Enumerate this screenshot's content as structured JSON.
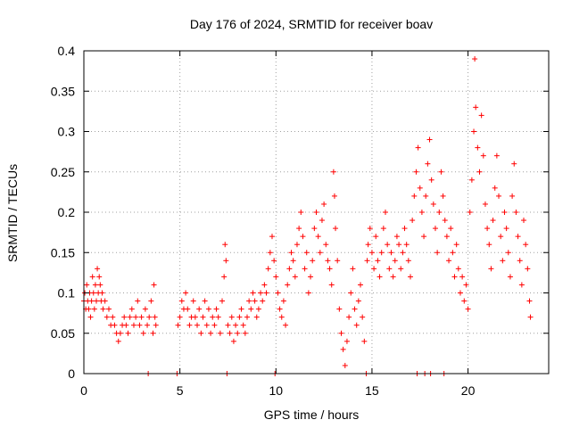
{
  "chart_data": {
    "type": "scatter",
    "title": "Day 176 of 2024, SRMTID for receiver boav",
    "xlabel": "GPS time / hours",
    "ylabel": "SRMTID / TECUs",
    "xlim": [
      0,
      24.2
    ],
    "ylim": [
      0,
      0.4
    ],
    "x_ticks": [
      0,
      5,
      10,
      15,
      20
    ],
    "x_tick_labels": [
      "0",
      "5",
      "10",
      "15",
      "20"
    ],
    "y_ticks": [
      0,
      0.05,
      0.1,
      0.15,
      0.2,
      0.25,
      0.3,
      0.35,
      0.4
    ],
    "y_tick_labels": [
      "0",
      "0.05",
      "0.1",
      "0.15",
      "0.2",
      "0.25",
      "0.3",
      "0.35",
      "0.4"
    ],
    "grid": true,
    "marker": "plus",
    "color": "#ff0000",
    "series": [
      {
        "name": "SRMTID",
        "points": [
          [
            0.0,
            0.09
          ],
          [
            0.05,
            0.1
          ],
          [
            0.1,
            0.08
          ],
          [
            0.15,
            0.11
          ],
          [
            0.2,
            0.09
          ],
          [
            0.25,
            0.08
          ],
          [
            0.3,
            0.1
          ],
          [
            0.35,
            0.07
          ],
          [
            0.4,
            0.09
          ],
          [
            0.45,
            0.12
          ],
          [
            0.5,
            0.1
          ],
          [
            0.55,
            0.08
          ],
          [
            0.6,
            0.11
          ],
          [
            0.65,
            0.09
          ],
          [
            0.7,
            0.13
          ],
          [
            0.75,
            0.1
          ],
          [
            0.8,
            0.12
          ],
          [
            0.85,
            0.11
          ],
          [
            0.9,
            0.09
          ],
          [
            0.95,
            0.1
          ],
          [
            1.0,
            0.08
          ],
          [
            1.1,
            0.09
          ],
          [
            1.2,
            0.07
          ],
          [
            1.3,
            0.08
          ],
          [
            1.4,
            0.06
          ],
          [
            1.5,
            0.07
          ],
          [
            1.6,
            0.06
          ],
          [
            1.7,
            0.05
          ],
          [
            1.8,
            0.04
          ],
          [
            1.9,
            0.05
          ],
          [
            2.0,
            0.06
          ],
          [
            2.1,
            0.07
          ],
          [
            2.2,
            0.06
          ],
          [
            2.3,
            0.05
          ],
          [
            2.4,
            0.07
          ],
          [
            2.5,
            0.08
          ],
          [
            2.6,
            0.06
          ],
          [
            2.7,
            0.07
          ],
          [
            2.8,
            0.09
          ],
          [
            2.9,
            0.06
          ],
          [
            3.0,
            0.07
          ],
          [
            3.1,
            0.05
          ],
          [
            3.2,
            0.08
          ],
          [
            3.3,
            0.06
          ],
          [
            3.4,
            0.07
          ],
          [
            3.5,
            0.09
          ],
          [
            3.6,
            0.05
          ],
          [
            3.65,
            0.11
          ],
          [
            3.7,
            0.07
          ],
          [
            3.75,
            0.06
          ],
          [
            3.35,
            0.0
          ],
          [
            4.85,
            0.0
          ],
          [
            4.9,
            0.06
          ],
          [
            5.0,
            0.07
          ],
          [
            5.1,
            0.09
          ],
          [
            5.2,
            0.08
          ],
          [
            5.3,
            0.1
          ],
          [
            5.4,
            0.08
          ],
          [
            5.5,
            0.06
          ],
          [
            5.6,
            0.07
          ],
          [
            5.7,
            0.09
          ],
          [
            5.8,
            0.07
          ],
          [
            5.9,
            0.06
          ],
          [
            6.0,
            0.08
          ],
          [
            6.1,
            0.05
          ],
          [
            6.2,
            0.07
          ],
          [
            6.3,
            0.09
          ],
          [
            6.4,
            0.06
          ],
          [
            6.5,
            0.08
          ],
          [
            6.6,
            0.05
          ],
          [
            6.7,
            0.07
          ],
          [
            6.8,
            0.06
          ],
          [
            6.9,
            0.08
          ],
          [
            7.0,
            0.07
          ],
          [
            7.1,
            0.05
          ],
          [
            7.2,
            0.09
          ],
          [
            7.3,
            0.12
          ],
          [
            7.35,
            0.16
          ],
          [
            7.4,
            0.14
          ],
          [
            7.5,
            0.06
          ],
          [
            7.45,
            0.0
          ],
          [
            7.6,
            0.05
          ],
          [
            7.7,
            0.07
          ],
          [
            7.8,
            0.04
          ],
          [
            7.9,
            0.06
          ],
          [
            8.0,
            0.05
          ],
          [
            8.1,
            0.07
          ],
          [
            8.2,
            0.08
          ],
          [
            8.3,
            0.06
          ],
          [
            8.4,
            0.05
          ],
          [
            8.5,
            0.07
          ],
          [
            8.6,
            0.09
          ],
          [
            8.7,
            0.08
          ],
          [
            8.8,
            0.1
          ],
          [
            8.9,
            0.09
          ],
          [
            9.0,
            0.07
          ],
          [
            9.1,
            0.08
          ],
          [
            9.2,
            0.1
          ],
          [
            9.3,
            0.09
          ],
          [
            9.4,
            0.11
          ],
          [
            9.5,
            0.1
          ],
          [
            9.6,
            0.13
          ],
          [
            9.7,
            0.15
          ],
          [
            9.8,
            0.17
          ],
          [
            9.9,
            0.14
          ],
          [
            9.95,
            0.0
          ],
          [
            10.0,
            0.12
          ],
          [
            10.1,
            0.1
          ],
          [
            10.2,
            0.08
          ],
          [
            10.3,
            0.07
          ],
          [
            10.4,
            0.09
          ],
          [
            10.5,
            0.06
          ],
          [
            10.6,
            0.11
          ],
          [
            10.7,
            0.13
          ],
          [
            10.8,
            0.15
          ],
          [
            10.9,
            0.14
          ],
          [
            11.0,
            0.12
          ],
          [
            11.1,
            0.16
          ],
          [
            11.2,
            0.18
          ],
          [
            11.3,
            0.2
          ],
          [
            11.4,
            0.17
          ],
          [
            11.5,
            0.13
          ],
          [
            11.6,
            0.15
          ],
          [
            11.7,
            0.1
          ],
          [
            11.8,
            0.12
          ],
          [
            11.9,
            0.14
          ],
          [
            12.0,
            0.18
          ],
          [
            12.1,
            0.2
          ],
          [
            12.2,
            0.17
          ],
          [
            12.3,
            0.15
          ],
          [
            12.4,
            0.19
          ],
          [
            12.5,
            0.21
          ],
          [
            12.6,
            0.16
          ],
          [
            12.7,
            0.14
          ],
          [
            12.8,
            0.13
          ],
          [
            12.9,
            0.11
          ],
          [
            13.0,
            0.25
          ],
          [
            13.05,
            0.22
          ],
          [
            13.1,
            0.18
          ],
          [
            13.2,
            0.14
          ],
          [
            13.3,
            0.08
          ],
          [
            13.4,
            0.05
          ],
          [
            13.5,
            0.03
          ],
          [
            13.6,
            0.01
          ],
          [
            13.7,
            0.04
          ],
          [
            13.8,
            0.07
          ],
          [
            13.9,
            0.1
          ],
          [
            14.0,
            0.13
          ],
          [
            14.1,
            0.08
          ],
          [
            14.2,
            0.06
          ],
          [
            14.3,
            0.09
          ],
          [
            14.4,
            0.11
          ],
          [
            14.5,
            0.07
          ],
          [
            14.6,
            0.04
          ],
          [
            14.7,
            0.0
          ],
          [
            14.75,
            0.14
          ],
          [
            14.8,
            0.16
          ],
          [
            14.9,
            0.18
          ],
          [
            15.0,
            0.15
          ],
          [
            15.1,
            0.13
          ],
          [
            15.2,
            0.17
          ],
          [
            15.3,
            0.14
          ],
          [
            15.4,
            0.12
          ],
          [
            15.5,
            0.15
          ],
          [
            15.6,
            0.18
          ],
          [
            15.7,
            0.2
          ],
          [
            15.8,
            0.16
          ],
          [
            15.9,
            0.13
          ],
          [
            16.0,
            0.15
          ],
          [
            16.1,
            0.12
          ],
          [
            16.2,
            0.14
          ],
          [
            16.3,
            0.17
          ],
          [
            16.4,
            0.16
          ],
          [
            16.5,
            0.13
          ],
          [
            16.6,
            0.15
          ],
          [
            16.7,
            0.18
          ],
          [
            16.8,
            0.16
          ],
          [
            16.9,
            0.14
          ],
          [
            17.0,
            0.12
          ],
          [
            17.1,
            0.19
          ],
          [
            17.2,
            0.22
          ],
          [
            17.3,
            0.25
          ],
          [
            17.35,
            0.0
          ],
          [
            17.4,
            0.28
          ],
          [
            17.5,
            0.23
          ],
          [
            17.6,
            0.2
          ],
          [
            17.7,
            0.17
          ],
          [
            17.75,
            0.0
          ],
          [
            17.8,
            0.22
          ],
          [
            17.9,
            0.26
          ],
          [
            18.0,
            0.29
          ],
          [
            18.05,
            0.0
          ],
          [
            18.1,
            0.24
          ],
          [
            18.2,
            0.21
          ],
          [
            18.3,
            0.18
          ],
          [
            18.4,
            0.15
          ],
          [
            18.5,
            0.2
          ],
          [
            18.6,
            0.25
          ],
          [
            18.7,
            0.22
          ],
          [
            18.75,
            0.0
          ],
          [
            18.8,
            0.19
          ],
          [
            18.9,
            0.17
          ],
          [
            19.0,
            0.14
          ],
          [
            19.1,
            0.18
          ],
          [
            19.2,
            0.15
          ],
          [
            19.3,
            0.12
          ],
          [
            19.4,
            0.16
          ],
          [
            19.5,
            0.13
          ],
          [
            19.6,
            0.1
          ],
          [
            19.7,
            0.12
          ],
          [
            19.8,
            0.09
          ],
          [
            19.9,
            0.11
          ],
          [
            20.0,
            0.08
          ],
          [
            20.1,
            0.2
          ],
          [
            20.2,
            0.24
          ],
          [
            20.3,
            0.3
          ],
          [
            20.35,
            0.39
          ],
          [
            20.4,
            0.33
          ],
          [
            20.5,
            0.28
          ],
          [
            20.6,
            0.25
          ],
          [
            20.7,
            0.32
          ],
          [
            20.8,
            0.27
          ],
          [
            20.9,
            0.21
          ],
          [
            21.0,
            0.18
          ],
          [
            21.1,
            0.16
          ],
          [
            21.2,
            0.13
          ],
          [
            21.3,
            0.19
          ],
          [
            21.4,
            0.23
          ],
          [
            21.5,
            0.27
          ],
          [
            21.6,
            0.22
          ],
          [
            21.7,
            0.17
          ],
          [
            21.8,
            0.14
          ],
          [
            21.9,
            0.2
          ],
          [
            22.0,
            0.18
          ],
          [
            22.1,
            0.15
          ],
          [
            22.2,
            0.12
          ],
          [
            22.3,
            0.22
          ],
          [
            22.4,
            0.26
          ],
          [
            22.5,
            0.2
          ],
          [
            22.6,
            0.17
          ],
          [
            22.7,
            0.14
          ],
          [
            22.8,
            0.11
          ],
          [
            22.9,
            0.19
          ],
          [
            23.0,
            0.16
          ],
          [
            23.1,
            0.13
          ],
          [
            23.2,
            0.09
          ],
          [
            23.25,
            0.07
          ]
        ]
      }
    ]
  }
}
